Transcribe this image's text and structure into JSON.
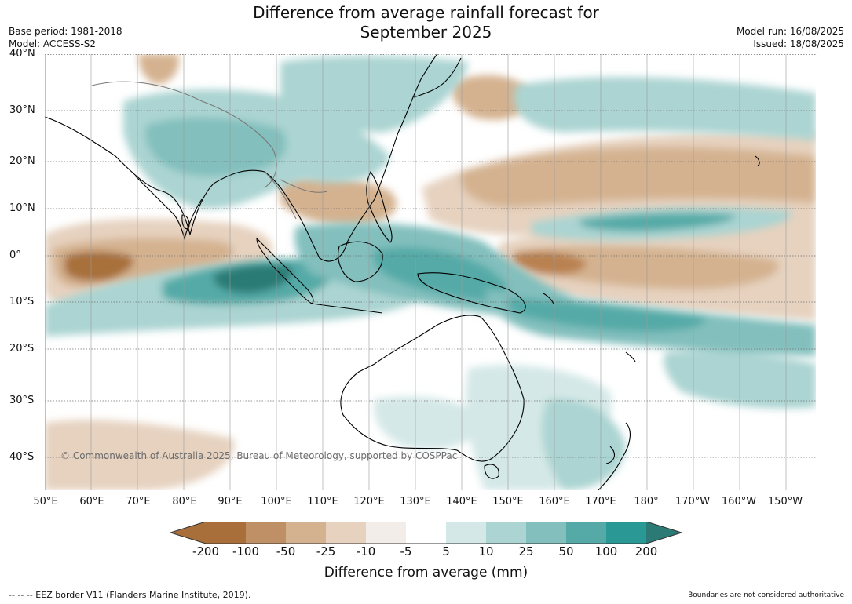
{
  "title_line1": "Difference from average rainfall forecast for",
  "title_line2": "September 2025",
  "base_period": "Base period: 1981-2018",
  "model": "Model: ACCESS-S2",
  "model_run": "Model run: 16/08/2025",
  "issued": "Issued: 18/08/2025",
  "copyright": "© Commonwealth of Australia 2025, Bureau of Meteorology, supported by COSPPac",
  "lat_labels": [
    "40°N",
    "30°N",
    "20°N",
    "10°N",
    "0°",
    "10°S",
    "20°S",
    "30°S",
    "40°S"
  ],
  "lon_labels": [
    "50°E",
    "60°E",
    "70°E",
    "80°E",
    "90°E",
    "100°E",
    "110°E",
    "120°E",
    "130°E",
    "140°E",
    "150°E",
    "160°E",
    "170°E",
    "180°",
    "170°W",
    "160°W",
    "150°W"
  ],
  "colorbar": {
    "ticks": [
      "-200",
      "-100",
      "-50",
      "-25",
      "-10",
      "-5",
      "5",
      "10",
      "25",
      "50",
      "100",
      "200"
    ],
    "colors": [
      "#a86f3a",
      "#bf9066",
      "#d4b290",
      "#e6d2bf",
      "#f3ede9",
      "#ffffff",
      "#d4e8e7",
      "#abd4d2",
      "#82bfbd",
      "#55aaa7",
      "#2a9894",
      "#2b7a76"
    ],
    "title": "Difference from average (mm)"
  },
  "footnote_left": "--  --  -- EEZ border V11 (Flanders Marine Institute, 2019).",
  "footnote_right": "Boundaries are not considered authoritative"
}
